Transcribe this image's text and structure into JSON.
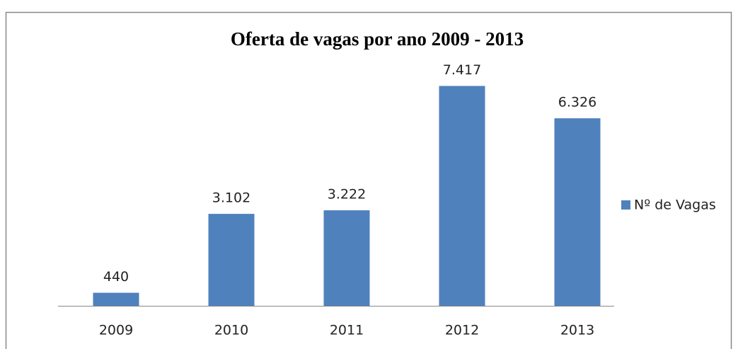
{
  "chart_data": {
    "type": "bar",
    "title": "Oferta de vagas por ano 2009 - 2013",
    "categories": [
      "2009",
      "2010",
      "2011",
      "2012",
      "2013"
    ],
    "series": [
      {
        "name": "Nº de Vagas",
        "color": "#4f81bd",
        "values": [
          440,
          3102,
          3222,
          7417,
          6326
        ],
        "value_labels": [
          "440",
          "3.102",
          "3.222",
          "7.417",
          "6.326"
        ]
      }
    ],
    "ylim": [
      0,
      8000
    ],
    "legend": "right"
  }
}
